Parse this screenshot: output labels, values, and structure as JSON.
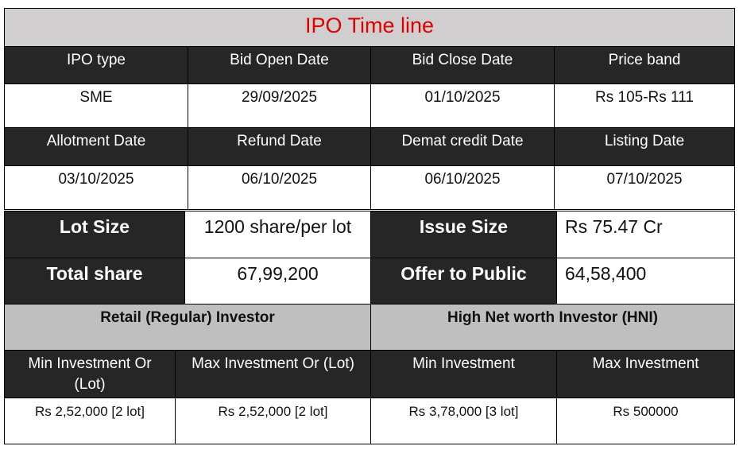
{
  "title": "IPO Time line",
  "colors": {
    "title": "#e00000",
    "header_bg": "#262626",
    "title_bg": "#d0cece",
    "section_bg": "#bfbfbf"
  },
  "timeline": {
    "headers1": [
      "IPO type",
      "Bid Open Date",
      "Bid Close Date",
      "Price band"
    ],
    "values1": [
      "SME",
      "29/09/2025",
      "01/10/2025",
      "Rs 105-Rs 111"
    ],
    "headers2": [
      "Allotment Date",
      "Refund Date",
      "Demat credit Date",
      "Listing Date"
    ],
    "values2": [
      "03/10/2025",
      "06/10/2025",
      "06/10/2025",
      "07/10/2025"
    ]
  },
  "summary": {
    "lot_size_label": "Lot Size",
    "lot_size": "1200 share/per lot",
    "issue_size_label": "Issue Size",
    "issue_size": "Rs 75.47 Cr",
    "total_share_label": "Total share",
    "total_share": "67,99,200",
    "offer_label": "Offer to Public",
    "offer": "64,58,400"
  },
  "investors": {
    "retail_title": "Retail (Regular) Investor",
    "hni_title": "High Net worth Investor (HNI)",
    "headers": [
      "Min Investment Or (Lot)",
      "Max Investment Or (Lot)",
      "Min Investment",
      "Max Investment"
    ],
    "values": [
      "Rs 2,52,000 [2 lot]",
      "Rs 2,52,000 [2 lot]",
      "Rs 3,78,000 [3 lot]",
      "Rs 500000"
    ]
  }
}
